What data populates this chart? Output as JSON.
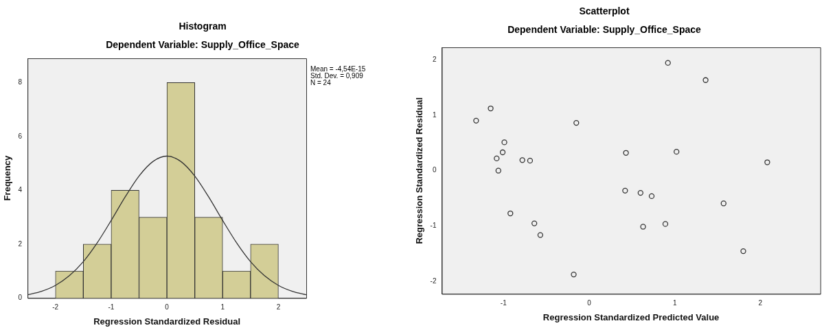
{
  "chart_data": [
    {
      "type": "histogram",
      "title": "Histogram",
      "subtitle": "Dependent Variable: Supply_Office_Space",
      "xlabel": "Regression Standardized Residual",
      "ylabel": "Frequency",
      "annotations": [
        "Mean = -4,54E-15",
        "Std. Dev. = 0,909",
        "N = 24"
      ],
      "series": [
        {
          "type": "histogram",
          "color": "#d3ce97",
          "bins": [
            -2,
            -1.5,
            -1,
            -0.5,
            0,
            0.5,
            1,
            1.5,
            2
          ],
          "values": [
            1,
            2,
            4,
            3,
            8,
            3,
            1,
            2
          ]
        },
        {
          "type": "line",
          "color": "#333333",
          "x": [
            -2.5,
            -2.25,
            -2,
            -1.75,
            -1.5,
            -1.25,
            -1,
            -0.75,
            -0.5,
            -0.25,
            0,
            0.25,
            0.5,
            0.75,
            1,
            1.25,
            1.5,
            1.75,
            2,
            2.25,
            2.5
          ],
          "values": [
            0.12,
            0.25,
            0.47,
            0.83,
            1.35,
            2.05,
            2.88,
            3.75,
            4.53,
            5.07,
            5.27,
            5.07,
            4.53,
            3.75,
            2.88,
            2.05,
            1.35,
            0.83,
            0.47,
            0.25,
            0.12
          ]
        }
      ],
      "xlim": [
        -2.5,
        2.5
      ],
      "xticks": [
        -2,
        -1,
        0,
        1,
        2
      ],
      "ylim": [
        0,
        8.9
      ],
      "yticks": [
        0,
        2,
        4,
        6,
        8
      ],
      "grid": false,
      "legend": false,
      "marker": "none"
    },
    {
      "type": "scatter",
      "title": "Scatterplot",
      "subtitle": "Dependent Variable: Supply_Office_Space",
      "xlabel": "Regression Standardized Predicted Value",
      "ylabel": "Regression Standardized Residual",
      "x": [
        -1.32,
        -1.15,
        -0.99,
        -1.01,
        -1.08,
        -1.06,
        -0.78,
        -0.69,
        -0.92,
        -0.64,
        -0.57,
        -0.15,
        -0.18,
        0.92,
        1.36,
        0.43,
        1.02,
        2.08,
        0.42,
        0.6,
        0.73,
        1.57,
        0.63,
        0.89,
        1.8
      ],
      "values": [
        0.9,
        1.12,
        0.51,
        0.33,
        0.22,
        0.0,
        0.19,
        0.18,
        -0.77,
        -0.95,
        -1.16,
        0.86,
        -1.87,
        1.94,
        1.63,
        0.32,
        0.34,
        0.15,
        -0.36,
        -0.4,
        -0.46,
        -0.59,
        -1.01,
        -0.96,
        -1.45
      ],
      "color": "#333333",
      "marker": "circle",
      "xlim": [
        -1.72,
        2.7
      ],
      "xticks": [
        -1,
        0,
        1,
        2
      ],
      "ylim": [
        -2.22,
        2.22
      ],
      "yticks": [
        -2,
        -1,
        0,
        1,
        2
      ],
      "grid": false,
      "legend": false
    }
  ]
}
